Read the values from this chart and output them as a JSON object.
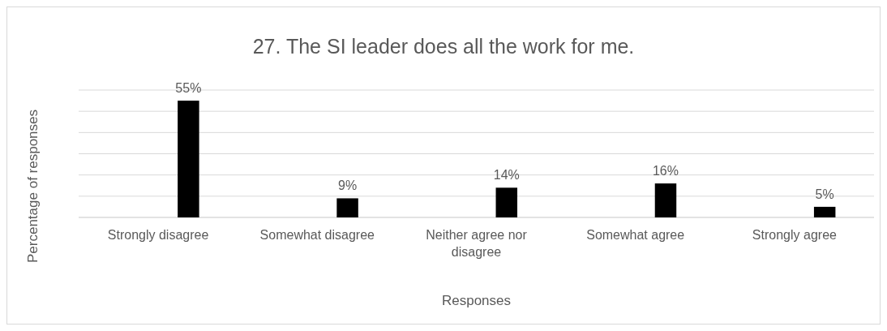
{
  "chart_data": {
    "type": "bar",
    "title": "27. The SI leader does all the work for me.",
    "xlabel": "Responses",
    "ylabel": "Percentage of responses",
    "categories": [
      "Strongly disagree",
      "Somewhat disagree",
      "Neither agree nor disagree",
      "Somewhat agree",
      "Strongly agree"
    ],
    "values": [
      55,
      9,
      14,
      16,
      5
    ],
    "value_labels": [
      "55%",
      "9%",
      "14%",
      "16%",
      "5%"
    ],
    "color": "#000000",
    "ylim": [
      0,
      60
    ],
    "yticks": [
      {
        "value": 0,
        "label": null
      },
      {
        "value": 10,
        "label": null
      },
      {
        "value": 20,
        "label": null
      },
      {
        "value": 30,
        "label": null
      },
      {
        "value": 40,
        "label": null
      },
      {
        "value": 50,
        "label": null
      },
      {
        "value": 60,
        "label": null
      }
    ],
    "grid": "y",
    "tick_labels": "x"
  }
}
